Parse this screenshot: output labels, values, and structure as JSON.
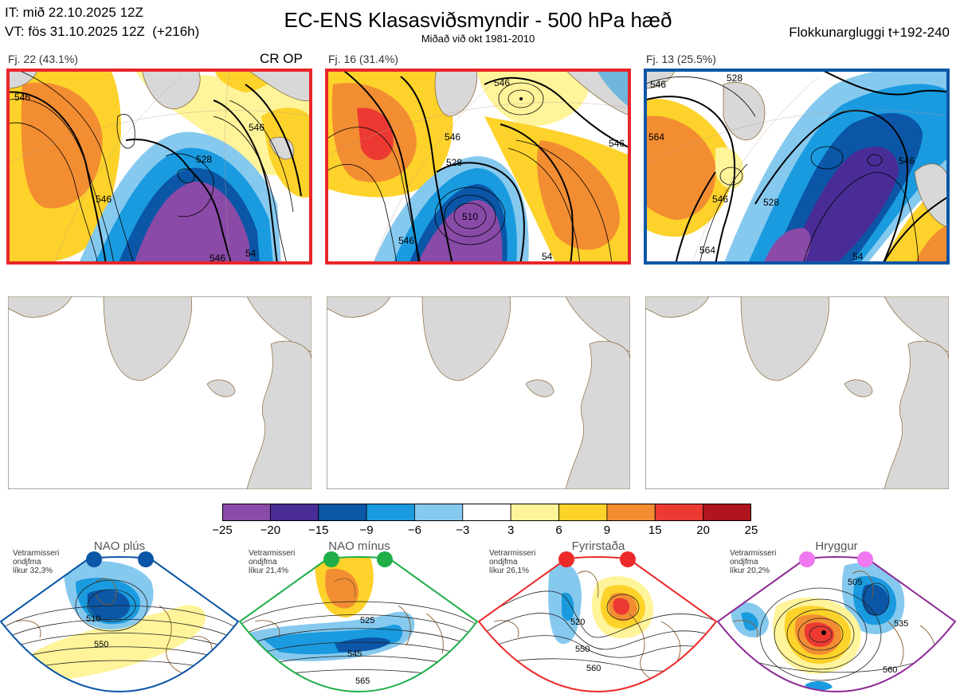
{
  "header": {
    "init_line": "IT: mið 22.10.2025 12Z",
    "valid_line": "VT: fös 31.10.2025 12Z  (+216h)",
    "title": "EC-ENS Klasasviðsmyndir - 500 hPa hæð",
    "subtitle": "Miðað við okt 1981-2010",
    "window": "Flokkunargluggi t+192-240"
  },
  "clusters": [
    {
      "label": "Fj. 22 (43.1%)",
      "op_label": "CR OP",
      "border_color": "#e8262a",
      "contours": [
        "546",
        "528",
        "546",
        "546",
        "546",
        "54"
      ]
    },
    {
      "label": "Fj. 16 (31.4%)",
      "op_label": "",
      "border_color": "#e8262a",
      "contours": [
        "546",
        "546",
        "528",
        "546",
        "510",
        "546",
        "54"
      ]
    },
    {
      "label": "Fj. 13 (25.5%)",
      "op_label": "",
      "border_color": "#0b5ba8",
      "contours": [
        "546",
        "528",
        "564",
        "546",
        "528",
        "546",
        "564",
        "54"
      ]
    }
  ],
  "colorbar": {
    "ticks": [
      "−25",
      "−20",
      "−15",
      "−9",
      "−6",
      "−3",
      "3",
      "6",
      "9",
      "15",
      "20",
      "25"
    ],
    "colors": [
      "#8a4aa8",
      "#4a2c96",
      "#0b56a6",
      "#1a9be0",
      "#86c9ef",
      "#ffffff",
      "#fff49a",
      "#fdd22a",
      "#f38d32",
      "#ec3a32",
      "#b0141c"
    ]
  },
  "regimes": [
    {
      "name": "NAO plús",
      "info": "Vetrarmisseri\nondjfma\nlíkur 32,3%",
      "dot_color": "#0b56a6",
      "frame_color": "#0b56a6",
      "contours": [
        "510",
        "550"
      ]
    },
    {
      "name": "NAO mínus",
      "info": "Vetrarmisseri\nondjfma\nlíkur 21,4%",
      "dot_color": "#1fae48",
      "frame_color": "#1fae48",
      "contours": [
        "525",
        "545",
        "565"
      ]
    },
    {
      "name": "Fyrirstaða",
      "info": "Vetrarmisseri\nondjfma\nlíkur 26,1%",
      "dot_color": "#ec2a2a",
      "frame_color": "#ec2a2a",
      "contours": [
        "520",
        "550",
        "560"
      ]
    },
    {
      "name": "Hryggur",
      "info": "Vetrarmisseri\nondjfma\nlíkur 20,2%",
      "dot_color": "#ef77ef",
      "frame_color": "#8e2a96",
      "contours": [
        "505",
        "535",
        "560"
      ]
    }
  ]
}
